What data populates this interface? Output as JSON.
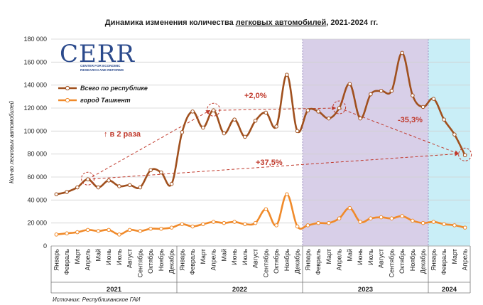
{
  "chart_data": {
    "type": "line",
    "title_prefix": "Динамика изменения количества ",
    "title_underlined": "легковых автомобилей",
    "title_suffix": ", 2021-2024 гг.",
    "ylabel": "Кол-во легковых автомобилей",
    "ylim": [
      0,
      180000
    ],
    "yticks": [
      "0",
      "20 000",
      "40 000",
      "60 000",
      "80 000",
      "100 000",
      "120 000",
      "140 000",
      "160 000",
      "180 000"
    ],
    "ytick_values": [
      0,
      20000,
      40000,
      60000,
      80000,
      100000,
      120000,
      140000,
      160000,
      180000
    ],
    "categories": [
      "Январь",
      "Февраль",
      "Март",
      "Апрель",
      "Май",
      "Июнь",
      "Июль",
      "Август",
      "Сентябрь",
      "Октябрь",
      "Ноябрь",
      "Декабрь",
      "Январь",
      "Февраль",
      "Март",
      "Апрель",
      "Май",
      "Июнь",
      "Июль",
      "Август",
      "Сентябрь",
      "Октябрь",
      "Ноябрь",
      "Декабрь",
      "Январь",
      "Февраль",
      "Март",
      "Апрель",
      "Май",
      "Июнь",
      "Июль",
      "Август",
      "Сентябрь",
      "Октябрь",
      "Ноябрь",
      "Декабрь",
      "Январь",
      "Февраль",
      "Март",
      "Апрель"
    ],
    "years": [
      {
        "label": "2021",
        "start": 0,
        "end": 11
      },
      {
        "label": "2022",
        "start": 12,
        "end": 23
      },
      {
        "label": "2023",
        "start": 24,
        "end": 35
      },
      {
        "label": "2024",
        "start": 36,
        "end": 39
      }
    ],
    "series": [
      {
        "name": "Всего по республике",
        "color": "#a0501e",
        "values": [
          45000,
          47000,
          51000,
          58000,
          51000,
          57000,
          52000,
          53000,
          51000,
          66000,
          64000,
          54000,
          99000,
          117000,
          103000,
          118000,
          98000,
          110000,
          95000,
          109000,
          116000,
          104000,
          149000,
          100000,
          118000,
          117000,
          111000,
          120000,
          141000,
          111000,
          132000,
          135000,
          135000,
          168000,
          131000,
          121000,
          128000,
          110000,
          97000,
          79000
        ]
      },
      {
        "name": "город Ташкент",
        "color": "#f08a2a",
        "values": [
          10000,
          11000,
          12000,
          14000,
          13000,
          14000,
          10000,
          14000,
          13000,
          15000,
          15000,
          16000,
          19000,
          17000,
          19000,
          21000,
          20000,
          21000,
          19000,
          20000,
          32000,
          18000,
          45000,
          17000,
          18000,
          20000,
          20000,
          24000,
          33000,
          21000,
          24000,
          25000,
          24000,
          26000,
          22000,
          20000,
          21000,
          19000,
          18000,
          16000
        ]
      }
    ],
    "annotations": [
      {
        "text": "↑ в 2 раза",
        "color": "#c0392b"
      },
      {
        "text": "+2,0%",
        "color": "#c0392b"
      },
      {
        "text": "-35,3%",
        "color": "#c0392b"
      },
      {
        "text": "+37,5%",
        "color": "#c0392b"
      }
    ],
    "shaded_regions": [
      {
        "start": 24,
        "end": 35,
        "color": "#d8cfe8"
      },
      {
        "start": 36,
        "end": 39,
        "color": "#c9eef7"
      }
    ]
  },
  "logo": {
    "name": "CERR",
    "tagline_1": "CENTER FOR ECONOMIC",
    "tagline_2": "RESEARCH AND REFORMS"
  },
  "source": "Источник: Республиканское ГАИ"
}
